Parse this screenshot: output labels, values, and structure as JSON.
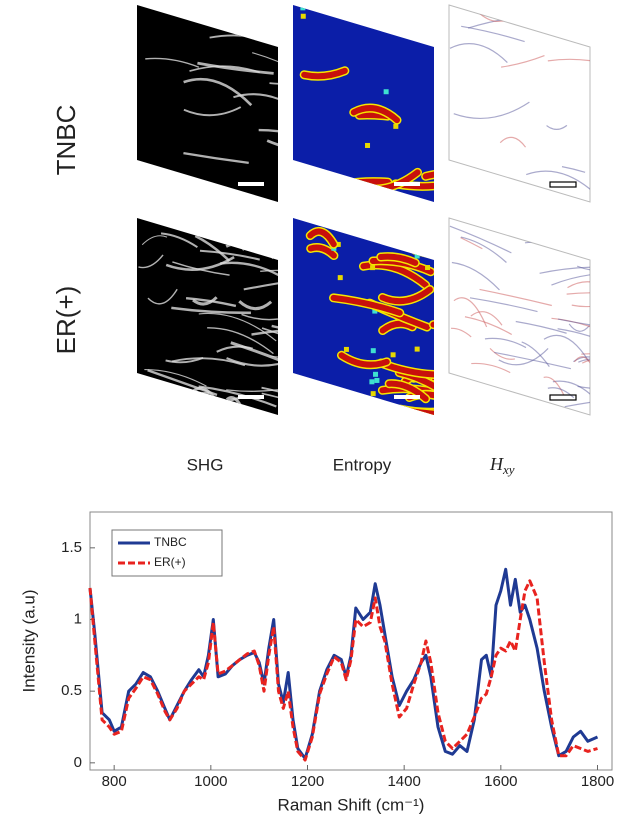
{
  "figure_panels": {
    "rows": [
      "TNBC",
      "ER(+)"
    ],
    "columns": [
      "SHG",
      "Entropy"
    ],
    "hxy": {
      "symbol": "H",
      "subscript": "xy"
    }
  },
  "chart_data": {
    "type": "line",
    "xlabel": "Raman Shift (cm⁻¹)",
    "ylabel": "Intensity (a.u)",
    "x": [
      750,
      760,
      775,
      790,
      800,
      815,
      830,
      845,
      860,
      875,
      890,
      905,
      915,
      930,
      945,
      960,
      975,
      985,
      995,
      1005,
      1015,
      1030,
      1045,
      1060,
      1075,
      1090,
      1100,
      1110,
      1120,
      1130,
      1140,
      1150,
      1160,
      1170,
      1180,
      1195,
      1210,
      1225,
      1240,
      1255,
      1270,
      1280,
      1290,
      1300,
      1315,
      1330,
      1340,
      1350,
      1360,
      1375,
      1390,
      1405,
      1420,
      1435,
      1445,
      1455,
      1470,
      1485,
      1500,
      1515,
      1530,
      1545,
      1560,
      1570,
      1580,
      1590,
      1600,
      1610,
      1620,
      1630,
      1640,
      1650,
      1660,
      1675,
      1690,
      1705,
      1720,
      1735,
      1750,
      1765,
      1780,
      1800
    ],
    "series": [
      {
        "name": "TNBC",
        "color": "#1f3a93",
        "values": [
          1.22,
          0.9,
          0.35,
          0.3,
          0.22,
          0.25,
          0.5,
          0.55,
          0.63,
          0.6,
          0.5,
          0.38,
          0.3,
          0.4,
          0.5,
          0.58,
          0.65,
          0.6,
          0.75,
          1.0,
          0.6,
          0.62,
          0.68,
          0.72,
          0.75,
          0.77,
          0.7,
          0.55,
          0.8,
          1.0,
          0.55,
          0.42,
          0.63,
          0.3,
          0.1,
          0.03,
          0.2,
          0.5,
          0.65,
          0.75,
          0.72,
          0.6,
          0.75,
          1.08,
          1.0,
          1.05,
          1.25,
          1.1,
          0.9,
          0.6,
          0.4,
          0.5,
          0.58,
          0.7,
          0.75,
          0.6,
          0.25,
          0.08,
          0.06,
          0.12,
          0.08,
          0.3,
          0.72,
          0.75,
          0.6,
          1.1,
          1.2,
          1.35,
          1.1,
          1.28,
          1.05,
          1.1,
          1.0,
          0.8,
          0.5,
          0.25,
          0.05,
          0.08,
          0.18,
          0.22,
          0.15,
          0.18
        ]
      },
      {
        "name": "ER(+)",
        "color": "#e8231f",
        "values": [
          1.22,
          0.85,
          0.3,
          0.25,
          0.2,
          0.22,
          0.45,
          0.52,
          0.6,
          0.58,
          0.48,
          0.36,
          0.3,
          0.38,
          0.5,
          0.55,
          0.6,
          0.58,
          0.7,
          0.98,
          0.62,
          0.64,
          0.68,
          0.72,
          0.76,
          0.78,
          0.68,
          0.5,
          0.75,
          0.95,
          0.5,
          0.38,
          0.5,
          0.25,
          0.08,
          0.02,
          0.18,
          0.48,
          0.62,
          0.74,
          0.7,
          0.58,
          0.72,
          1.0,
          0.95,
          0.98,
          1.15,
          0.95,
          0.85,
          0.55,
          0.32,
          0.38,
          0.55,
          0.7,
          0.85,
          0.7,
          0.35,
          0.15,
          0.1,
          0.15,
          0.2,
          0.32,
          0.45,
          0.48,
          0.6,
          0.75,
          0.8,
          0.78,
          0.85,
          0.78,
          1.0,
          1.2,
          1.27,
          1.15,
          0.7,
          0.3,
          0.05,
          0.05,
          0.12,
          0.1,
          0.08,
          0.1
        ]
      }
    ],
    "xlim": [
      750,
      1830
    ],
    "ylim": [
      -0.05,
      1.75
    ],
    "xticks": [
      800,
      1000,
      1200,
      1400,
      1600,
      1800
    ],
    "yticks": [
      0,
      0.5,
      1,
      1.5
    ],
    "legend": "upper-left"
  }
}
